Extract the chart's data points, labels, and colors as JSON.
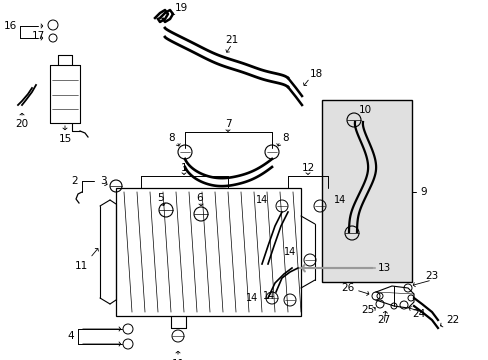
{
  "bg_color": "#ffffff",
  "line_color": "#000000",
  "gray_color": "#999999",
  "fig_width": 4.89,
  "fig_height": 3.6,
  "dpi": 100
}
